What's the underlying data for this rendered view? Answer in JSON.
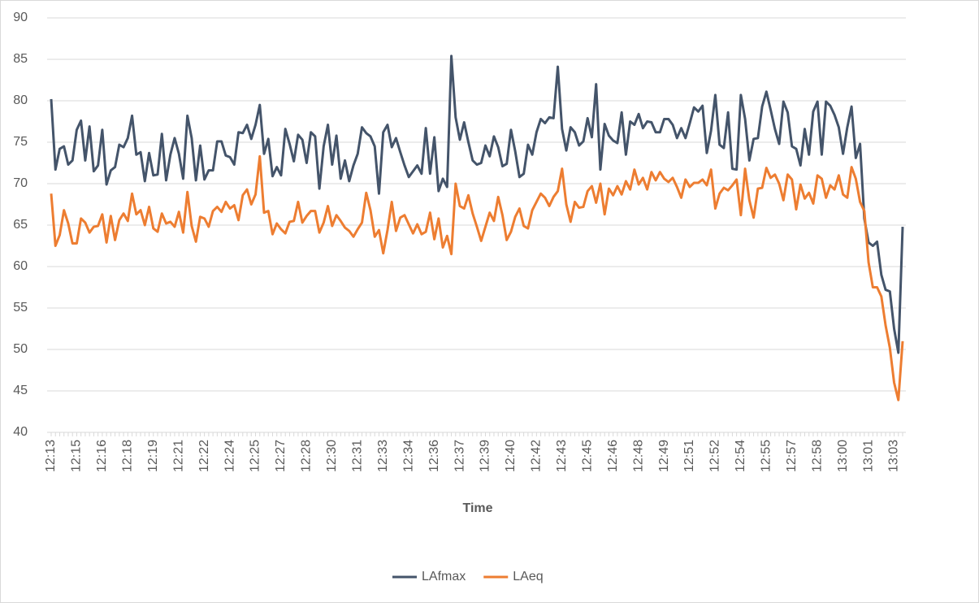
{
  "chart_data": {
    "type": "line",
    "x_label": "Time",
    "categories": [
      "12:13",
      null,
      null,
      null,
      null,
      null,
      "12:15",
      null,
      null,
      null,
      null,
      null,
      "12:16",
      null,
      null,
      null,
      null,
      null,
      "12:18",
      null,
      null,
      null,
      null,
      null,
      "12:19",
      null,
      null,
      null,
      null,
      null,
      "12:21",
      null,
      null,
      null,
      null,
      null,
      "12:22",
      null,
      null,
      null,
      null,
      null,
      "12:24",
      null,
      null,
      null,
      null,
      null,
      "12:25",
      null,
      null,
      null,
      null,
      null,
      "12:27",
      null,
      null,
      null,
      null,
      null,
      "12:28",
      null,
      null,
      null,
      null,
      null,
      "12:30",
      null,
      null,
      null,
      null,
      null,
      "12:31",
      null,
      null,
      null,
      null,
      null,
      "12:33",
      null,
      null,
      null,
      null,
      null,
      "12:34",
      null,
      null,
      null,
      null,
      null,
      "12:36",
      null,
      null,
      null,
      null,
      null,
      "12:37",
      null,
      null,
      null,
      null,
      null,
      "12:39",
      null,
      null,
      null,
      null,
      null,
      "12:40",
      null,
      null,
      null,
      null,
      null,
      "12:42",
      null,
      null,
      null,
      null,
      null,
      "12:43",
      null,
      null,
      null,
      null,
      null,
      "12:45",
      null,
      null,
      null,
      null,
      null,
      "12:46",
      null,
      null,
      null,
      null,
      null,
      "12:48",
      null,
      null,
      null,
      null,
      null,
      "12:49",
      null,
      null,
      null,
      null,
      null,
      "12:51",
      null,
      null,
      null,
      null,
      null,
      "12:52",
      null,
      null,
      null,
      null,
      null,
      "12:54",
      null,
      null,
      null,
      null,
      null,
      "12:55",
      null,
      null,
      null,
      null,
      null,
      "12:57",
      null,
      null,
      null,
      null,
      null,
      "12:58",
      null,
      null,
      null,
      null,
      null,
      "13:00",
      null,
      null,
      null,
      null,
      null,
      "13:01",
      null,
      null,
      null,
      null,
      null,
      "13:03",
      null,
      null
    ],
    "series": [
      {
        "name": "LAfmax",
        "color": "#44546a",
        "values": [
          80.2,
          71.7,
          74.2,
          74.5,
          72.3,
          72.8,
          76.5,
          77.6,
          72.8,
          76.9,
          71.5,
          72.2,
          76.5,
          69.9,
          71.6,
          72.0,
          74.7,
          74.4,
          75.5,
          78.2,
          73.5,
          73.8,
          70.3,
          73.7,
          71.0,
          71.1,
          76.0,
          70.4,
          73.5,
          75.5,
          73.6,
          70.6,
          78.2,
          75.5,
          70.4,
          74.6,
          70.5,
          71.6,
          71.6,
          75.1,
          75.1,
          73.4,
          73.2,
          72.3,
          76.2,
          76.1,
          77.1,
          75.4,
          77.1,
          79.5,
          73.6,
          75.4,
          70.9,
          72.0,
          71.0,
          76.6,
          74.8,
          72.7,
          75.9,
          75.3,
          72.5,
          76.2,
          75.7,
          69.4,
          74.5,
          77.1,
          72.3,
          75.8,
          70.6,
          72.8,
          70.3,
          72.2,
          73.6,
          76.8,
          76.1,
          75.7,
          74.5,
          68.8,
          76.2,
          77.1,
          74.4,
          75.5,
          73.8,
          72.2,
          70.8,
          71.5,
          72.2,
          71.2,
          76.7,
          71.2,
          75.6,
          69.1,
          70.6,
          69.6,
          85.4,
          78.0,
          75.3,
          77.4,
          75.0,
          72.8,
          72.3,
          72.5,
          74.6,
          73.3,
          75.7,
          74.4,
          72.1,
          72.4,
          76.5,
          73.9,
          70.8,
          71.2,
          74.7,
          73.5,
          76.2,
          77.8,
          77.3,
          78.0,
          77.9,
          84.1,
          76.6,
          74.0,
          76.8,
          76.2,
          74.6,
          75.1,
          77.9,
          75.6,
          82.0,
          71.7,
          77.2,
          75.8,
          75.2,
          74.9,
          78.6,
          73.5,
          77.5,
          77.1,
          78.4,
          76.7,
          77.5,
          77.4,
          76.2,
          76.2,
          77.8,
          77.8,
          77.1,
          75.5,
          76.7,
          75.5,
          77.3,
          79.2,
          78.7,
          79.4,
          73.7,
          76.4,
          80.7,
          74.7,
          74.3,
          78.6,
          71.8,
          71.7,
          80.7,
          77.8,
          72.8,
          75.4,
          75.5,
          79.3,
          81.1,
          78.9,
          76.6,
          74.8,
          79.9,
          78.6,
          74.5,
          74.2,
          72.2,
          76.6,
          73.5,
          78.7,
          79.9,
          73.5,
          79.9,
          79.4,
          78.3,
          76.8,
          73.6,
          76.8,
          79.3,
          73.1,
          74.8,
          65.8,
          62.9,
          62.5,
          63.0,
          59.0,
          57.2,
          57.0,
          52.5,
          49.6,
          64.8
        ]
      },
      {
        "name": "LAeq",
        "color": "#ed7d31",
        "values": [
          68.8,
          62.5,
          63.8,
          66.8,
          65.2,
          62.8,
          62.8,
          65.8,
          65.3,
          64.1,
          64.8,
          64.9,
          66.3,
          62.9,
          66.1,
          63.2,
          65.6,
          66.4,
          65.5,
          68.8,
          66.3,
          66.8,
          65.0,
          67.2,
          64.6,
          64.2,
          66.4,
          65.2,
          65.4,
          64.8,
          66.6,
          64.1,
          69.0,
          64.9,
          63.0,
          66.0,
          65.8,
          64.8,
          66.7,
          67.2,
          66.6,
          67.8,
          67.0,
          67.4,
          65.6,
          68.6,
          69.3,
          67.5,
          68.7,
          73.3,
          66.5,
          66.7,
          63.9,
          65.2,
          64.5,
          64.0,
          65.4,
          65.5,
          67.8,
          65.3,
          66.1,
          66.7,
          66.7,
          64.1,
          65.3,
          67.3,
          64.9,
          66.2,
          65.5,
          64.7,
          64.3,
          63.6,
          64.5,
          65.3,
          68.9,
          66.8,
          63.6,
          64.4,
          61.6,
          64.4,
          67.8,
          64.3,
          65.9,
          66.2,
          65.1,
          64.0,
          65.1,
          63.9,
          64.2,
          66.5,
          63.3,
          65.8,
          62.3,
          63.7,
          61.5,
          70.0,
          67.3,
          67.0,
          68.6,
          66.4,
          64.8,
          63.1,
          64.8,
          66.5,
          65.5,
          68.4,
          66.2,
          63.2,
          64.2,
          66.0,
          67.0,
          64.9,
          64.6,
          66.8,
          67.8,
          68.8,
          68.3,
          67.3,
          68.4,
          69.1,
          71.8,
          67.5,
          65.4,
          67.8,
          67.1,
          67.2,
          69.1,
          69.7,
          67.7,
          70.0,
          66.3,
          69.4,
          68.6,
          69.7,
          68.7,
          70.3,
          69.3,
          71.7,
          69.9,
          70.7,
          69.3,
          71.4,
          70.4,
          71.4,
          70.6,
          70.2,
          70.7,
          69.6,
          68.3,
          70.5,
          69.6,
          70.1,
          70.1,
          70.5,
          69.8,
          71.7,
          67.0,
          68.8,
          69.5,
          69.2,
          69.8,
          70.5,
          66.2,
          71.8,
          68.0,
          65.9,
          69.4,
          69.5,
          71.9,
          70.7,
          71.1,
          70.0,
          68.0,
          71.1,
          70.5,
          66.9,
          69.9,
          68.2,
          68.9,
          67.6,
          71.0,
          70.6,
          68.3,
          69.8,
          69.3,
          71.0,
          68.7,
          68.3,
          72.0,
          70.6,
          67.8,
          66.7,
          60.5,
          57.5,
          57.5,
          56.4,
          52.9,
          50.2,
          46.0,
          43.9,
          51.0
        ]
      }
    ],
    "ylim": [
      40,
      90
    ],
    "yticks": [
      40,
      45,
      50,
      55,
      60,
      65,
      70,
      75,
      80,
      85,
      90
    ],
    "grid": true,
    "legend": "bottom"
  }
}
